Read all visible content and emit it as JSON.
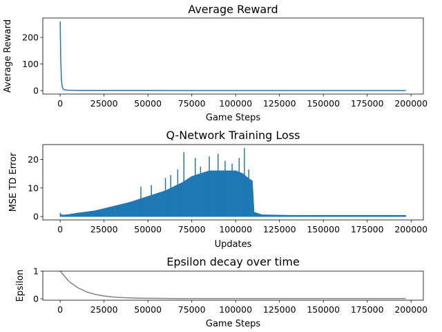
{
  "chart_data": [
    {
      "type": "line",
      "title": "Average Reward",
      "xlabel": "Game Steps",
      "ylabel": "Average Reward",
      "xlim": [
        -9900,
        207000
      ],
      "ylim": [
        -13,
        273
      ],
      "xticks": [
        0,
        25000,
        50000,
        75000,
        100000,
        125000,
        150000,
        175000,
        200000
      ],
      "yticks": [
        0,
        100,
        200
      ],
      "color": "#1f77b4",
      "series": [
        {
          "x": [
            0,
            300,
            700,
            1200,
            2000,
            4000,
            10000,
            50000,
            100000,
            150000,
            197000
          ],
          "y": [
            260,
            120,
            40,
            12,
            4,
            1.5,
            0.8,
            0.5,
            0.4,
            0.3,
            0.3
          ]
        }
      ]
    },
    {
      "type": "line",
      "title": "Q-Network Training Loss",
      "xlabel": "Updates",
      "ylabel": "MSE TD Error",
      "xlim": [
        -9900,
        207000
      ],
      "ylim": [
        -1.2,
        25.2
      ],
      "xticks": [
        0,
        25000,
        50000,
        75000,
        100000,
        125000,
        150000,
        175000,
        200000
      ],
      "yticks": [
        0,
        10,
        20
      ],
      "color": "#1f77b4",
      "envelope": {
        "x": [
          0,
          600,
          2000,
          5000,
          10000,
          20000,
          30000,
          40000,
          50000,
          60000,
          70000,
          75000,
          80000,
          85000,
          90000,
          95000,
          100000,
          104000,
          106000,
          108000,
          109500,
          110500,
          115000,
          130000,
          150000,
          175000,
          197000
        ],
        "y": [
          1.2,
          0.6,
          0.5,
          0.7,
          1.2,
          2.0,
          3.5,
          5.0,
          7.0,
          9.0,
          12.0,
          14.0,
          15.0,
          16.0,
          16.0,
          16.0,
          16.0,
          15.0,
          14.0,
          13.0,
          12.5,
          1.5,
          0.6,
          0.4,
          0.35,
          0.3,
          0.3
        ]
      },
      "spikes": [
        {
          "x": 46000,
          "y": 10.5
        },
        {
          "x": 52000,
          "y": 11.0
        },
        {
          "x": 60000,
          "y": 13.5
        },
        {
          "x": 63000,
          "y": 14.5
        },
        {
          "x": 67000,
          "y": 16.5
        },
        {
          "x": 70500,
          "y": 22.5
        },
        {
          "x": 77000,
          "y": 20.5
        },
        {
          "x": 80000,
          "y": 17.5
        },
        {
          "x": 85000,
          "y": 21.0
        },
        {
          "x": 90000,
          "y": 22.0
        },
        {
          "x": 94000,
          "y": 19.5
        },
        {
          "x": 98000,
          "y": 18.5
        },
        {
          "x": 102000,
          "y": 20.5
        },
        {
          "x": 105000,
          "y": 24.0
        },
        {
          "x": 107500,
          "y": 16.5
        }
      ]
    },
    {
      "type": "line",
      "title": "Epsilon decay over time",
      "xlabel": "Game Steps",
      "ylabel": "Epsilon",
      "xlim": [
        -9900,
        207000
      ],
      "ylim": [
        -0.05,
        1.0
      ],
      "xticks": [
        0,
        25000,
        50000,
        75000,
        100000,
        125000,
        150000,
        175000,
        200000
      ],
      "yticks": [
        0,
        1
      ],
      "color": "#808080",
      "series": [
        {
          "x": [
            0,
            5000,
            10000,
            15000,
            20000,
            25000,
            30000,
            35000,
            40000,
            45000,
            50000,
            60000,
            70000,
            100000,
            150000,
            197000
          ],
          "y": [
            1.0,
            0.63,
            0.4,
            0.25,
            0.16,
            0.1,
            0.065,
            0.045,
            0.03,
            0.022,
            0.018,
            0.012,
            0.01,
            0.01,
            0.01,
            0.01
          ]
        }
      ]
    }
  ]
}
